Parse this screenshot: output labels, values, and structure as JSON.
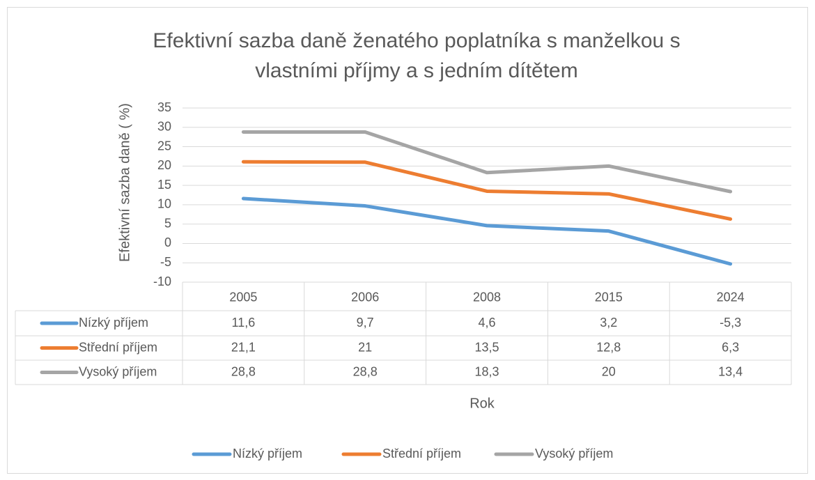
{
  "chart_data": {
    "type": "line",
    "title": [
      "Efektivní sazba daně ženatého poplatníka s manželkou s",
      "vlastními příjmy a s jedním dítětem"
    ],
    "x_label": "Rok",
    "y_label": "Efektivní sazba daně ( %)",
    "categories": [
      "2005",
      "2006",
      "2008",
      "2015",
      "2024"
    ],
    "series": [
      {
        "name": "Nízký příjem",
        "color": "#5b9bd5",
        "values": [
          11.6,
          9.7,
          4.6,
          3.2,
          -5.3
        ],
        "value_labels": [
          "11,6",
          "9,7",
          "4,6",
          "3,2",
          "-5,3"
        ]
      },
      {
        "name": "Střední příjem",
        "color": "#ed7d31",
        "values": [
          21.1,
          21,
          13.5,
          12.8,
          6.3
        ],
        "value_labels": [
          "21,1",
          "21",
          "13,5",
          "12,8",
          "6,3"
        ]
      },
      {
        "name": "Vysoký příjem",
        "color": "#a5a5a5",
        "values": [
          28.8,
          28.8,
          18.3,
          20,
          13.4
        ],
        "value_labels": [
          "28,8",
          "28,8",
          "18,3",
          "20",
          "13,4"
        ]
      }
    ],
    "ylim": [
      -10,
      35
    ],
    "yticks": [
      -10,
      -5,
      0,
      5,
      10,
      15,
      20,
      25,
      30,
      35
    ],
    "grid": true,
    "legend": "bottom",
    "data_table": true
  }
}
